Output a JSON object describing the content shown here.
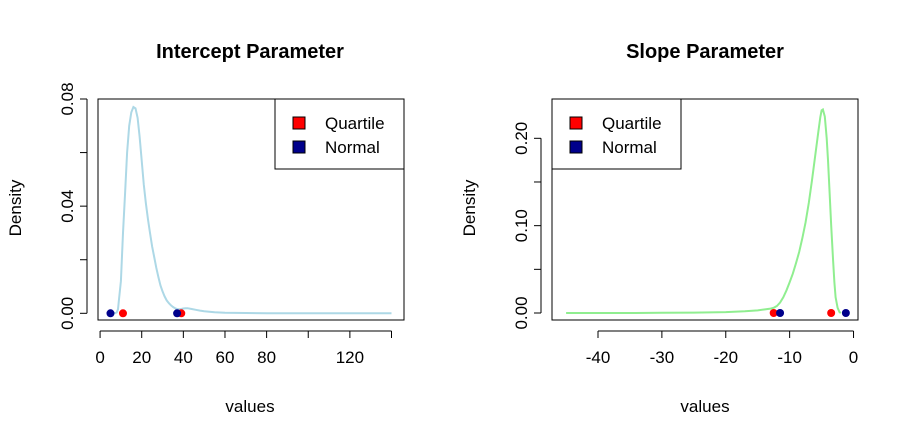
{
  "chart_data": [
    {
      "type": "line",
      "title": "Intercept Parameter",
      "xlabel": "values",
      "ylabel": "Density",
      "xlim": [
        -1,
        146
      ],
      "ylim": [
        -0.0025,
        0.08
      ],
      "xticks": [
        0,
        20,
        40,
        60,
        80,
        100,
        120,
        140
      ],
      "xtick_labels": [
        "0",
        "20",
        "40",
        "60",
        "80",
        "",
        "120",
        ""
      ],
      "yticks": [
        0,
        0.02,
        0.04,
        0.06,
        0.08
      ],
      "ytick_labels": [
        "0.00",
        "",
        "0.04",
        "",
        "0.08"
      ],
      "legend_position": "top-right",
      "legend": [
        {
          "label": "Quartile",
          "color": "#ff0000"
        },
        {
          "label": "Normal",
          "color": "#00008b"
        }
      ],
      "series": [
        {
          "color": "#add8e6",
          "x": [
            5,
            6,
            7,
            8,
            8.6,
            9,
            10,
            11,
            12,
            13,
            14,
            15,
            16,
            17,
            18,
            19,
            20,
            21,
            22,
            23,
            24,
            25,
            26,
            27,
            28,
            29,
            30,
            31,
            32,
            33,
            34,
            35,
            36,
            37,
            38,
            39,
            40,
            41,
            42,
            44,
            46,
            48,
            50,
            55,
            60,
            70,
            80,
            90,
            100,
            110,
            120,
            130,
            140
          ],
          "y": [
            0,
            0,
            0,
            0.0003,
            0.0015,
            0.0045,
            0.012,
            0.03,
            0.045,
            0.06,
            0.07,
            0.075,
            0.077,
            0.0765,
            0.073,
            0.066,
            0.057,
            0.048,
            0.041,
            0.035,
            0.03,
            0.025,
            0.021,
            0.017,
            0.0135,
            0.0105,
            0.0082,
            0.0063,
            0.0048,
            0.0038,
            0.003,
            0.0024,
            0.0019,
            0.0016,
            0.0015,
            0.0016,
            0.0018,
            0.0019,
            0.0019,
            0.0016,
            0.0013,
            0.001,
            0.0008,
            0.0004,
            0.0002,
            0.0001,
            5e-05,
            3e-05,
            2e-05,
            1e-05,
            1e-05,
            0,
            0
          ]
        }
      ],
      "markers": [
        {
          "group": "Quartile",
          "x": [
            11,
            39
          ],
          "y": [
            0,
            0
          ]
        },
        {
          "group": "Normal",
          "x": [
            5,
            37
          ],
          "y": [
            0,
            0
          ]
        }
      ]
    },
    {
      "type": "line",
      "title": "Slope Parameter",
      "xlabel": "values",
      "ylabel": "Density",
      "xlim": [
        -47.2,
        0.7
      ],
      "ylim": [
        -0.008,
        0.245
      ],
      "xticks": [
        -40,
        -30,
        -20,
        -10,
        0
      ],
      "xtick_labels": [
        "-40",
        "-30",
        "-20",
        "-10",
        "0"
      ],
      "yticks": [
        0,
        0.05,
        0.1,
        0.15,
        0.2
      ],
      "ytick_labels": [
        "0.00",
        "",
        "0.10",
        "",
        "0.20"
      ],
      "legend_position": "top-left",
      "legend": [
        {
          "label": "Quartile",
          "color": "#ff0000"
        },
        {
          "label": "Normal",
          "color": "#00008b"
        }
      ],
      "series": [
        {
          "color": "#90ee90",
          "x": [
            -45,
            -40,
            -35,
            -30,
            -25,
            -20,
            -17,
            -15,
            -14,
            -13,
            -12.5,
            -12,
            -11.5,
            -11,
            -10.5,
            -10,
            -9.5,
            -9,
            -8.5,
            -8,
            -7.5,
            -7,
            -6.5,
            -6,
            -5.5,
            -5.2,
            -5,
            -4.8,
            -4.5,
            -4.2,
            -4,
            -3.8,
            -3.5,
            -3.2,
            -3,
            -2.8,
            -2.5,
            -2.2,
            -2
          ],
          "y": [
            0,
            0,
            0,
            0.0002,
            0.0005,
            0.001,
            0.002,
            0.003,
            0.004,
            0.005,
            0.006,
            0.008,
            0.012,
            0.018,
            0.026,
            0.035,
            0.045,
            0.057,
            0.07,
            0.086,
            0.104,
            0.126,
            0.152,
            0.18,
            0.208,
            0.224,
            0.232,
            0.233,
            0.225,
            0.2,
            0.175,
            0.145,
            0.1,
            0.06,
            0.035,
            0.018,
            0.006,
            0.001,
            0
          ]
        }
      ],
      "markers": [
        {
          "group": "Quartile",
          "x": [
            -12.5,
            -3.5
          ],
          "y": [
            0,
            0
          ]
        },
        {
          "group": "Normal",
          "x": [
            -11.5,
            -1.2
          ],
          "y": [
            0,
            0
          ]
        }
      ]
    }
  ]
}
